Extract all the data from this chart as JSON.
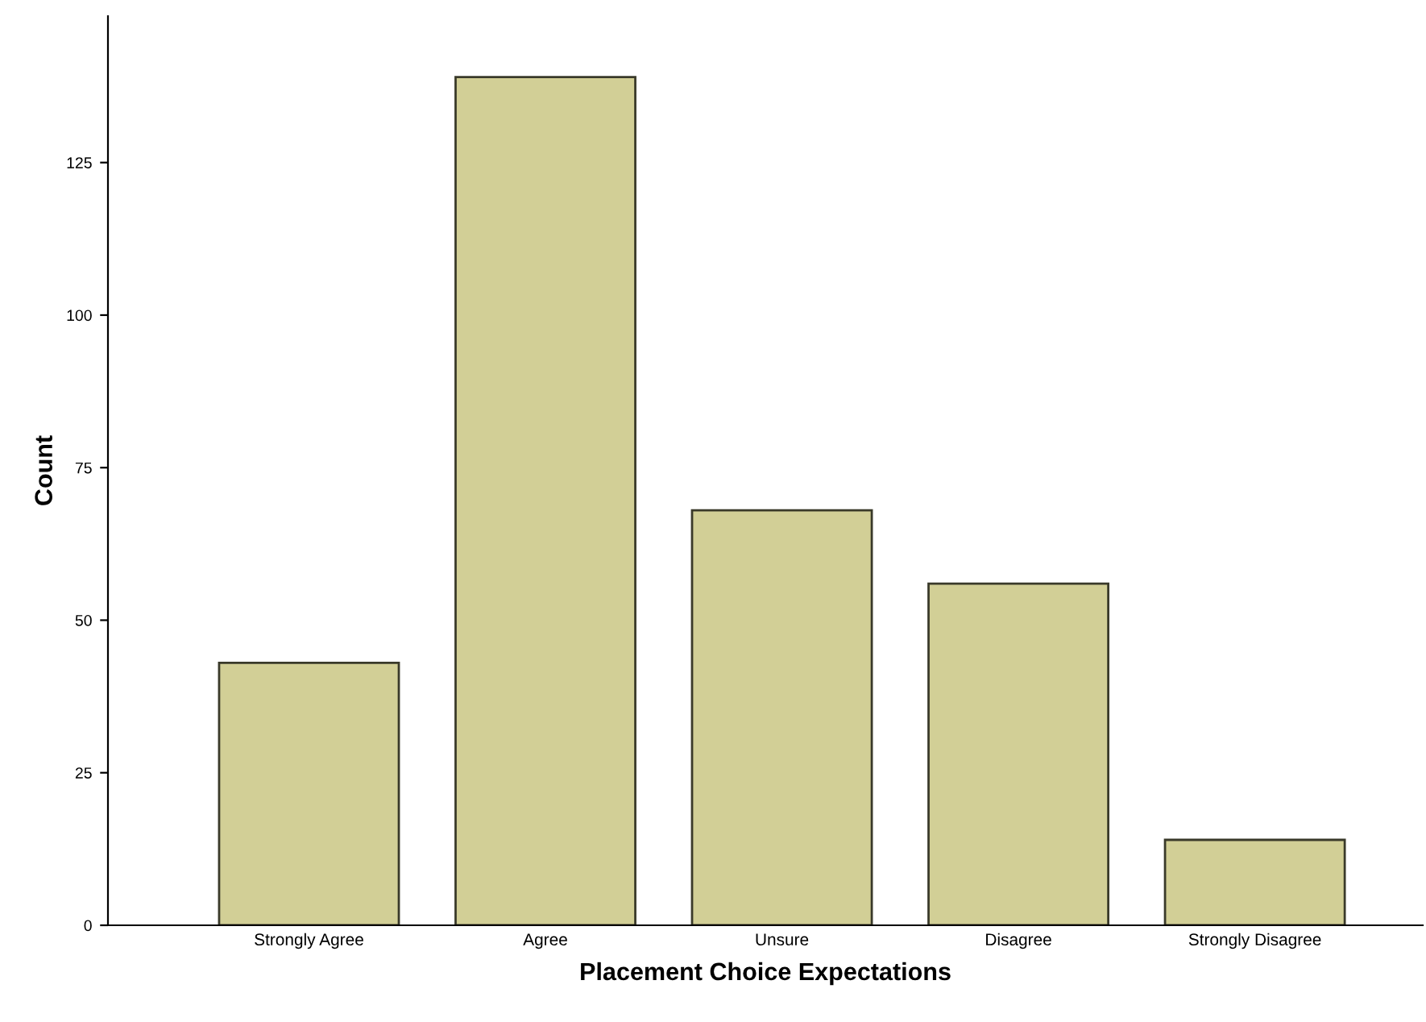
{
  "chart_data": {
    "type": "bar",
    "xlabel": "Placement Choice Expectations",
    "ylabel": "Count",
    "categories": [
      "Strongly Agree",
      "Agree",
      "Unsure",
      "Disagree",
      "Strongly Disagree"
    ],
    "values": [
      43,
      139,
      68,
      56,
      14
    ],
    "color": "#d2cf96",
    "ylim": [
      0,
      149
    ],
    "yticks": [
      0,
      25,
      50,
      75,
      100,
      125
    ],
    "grid": false,
    "legend": false
  }
}
